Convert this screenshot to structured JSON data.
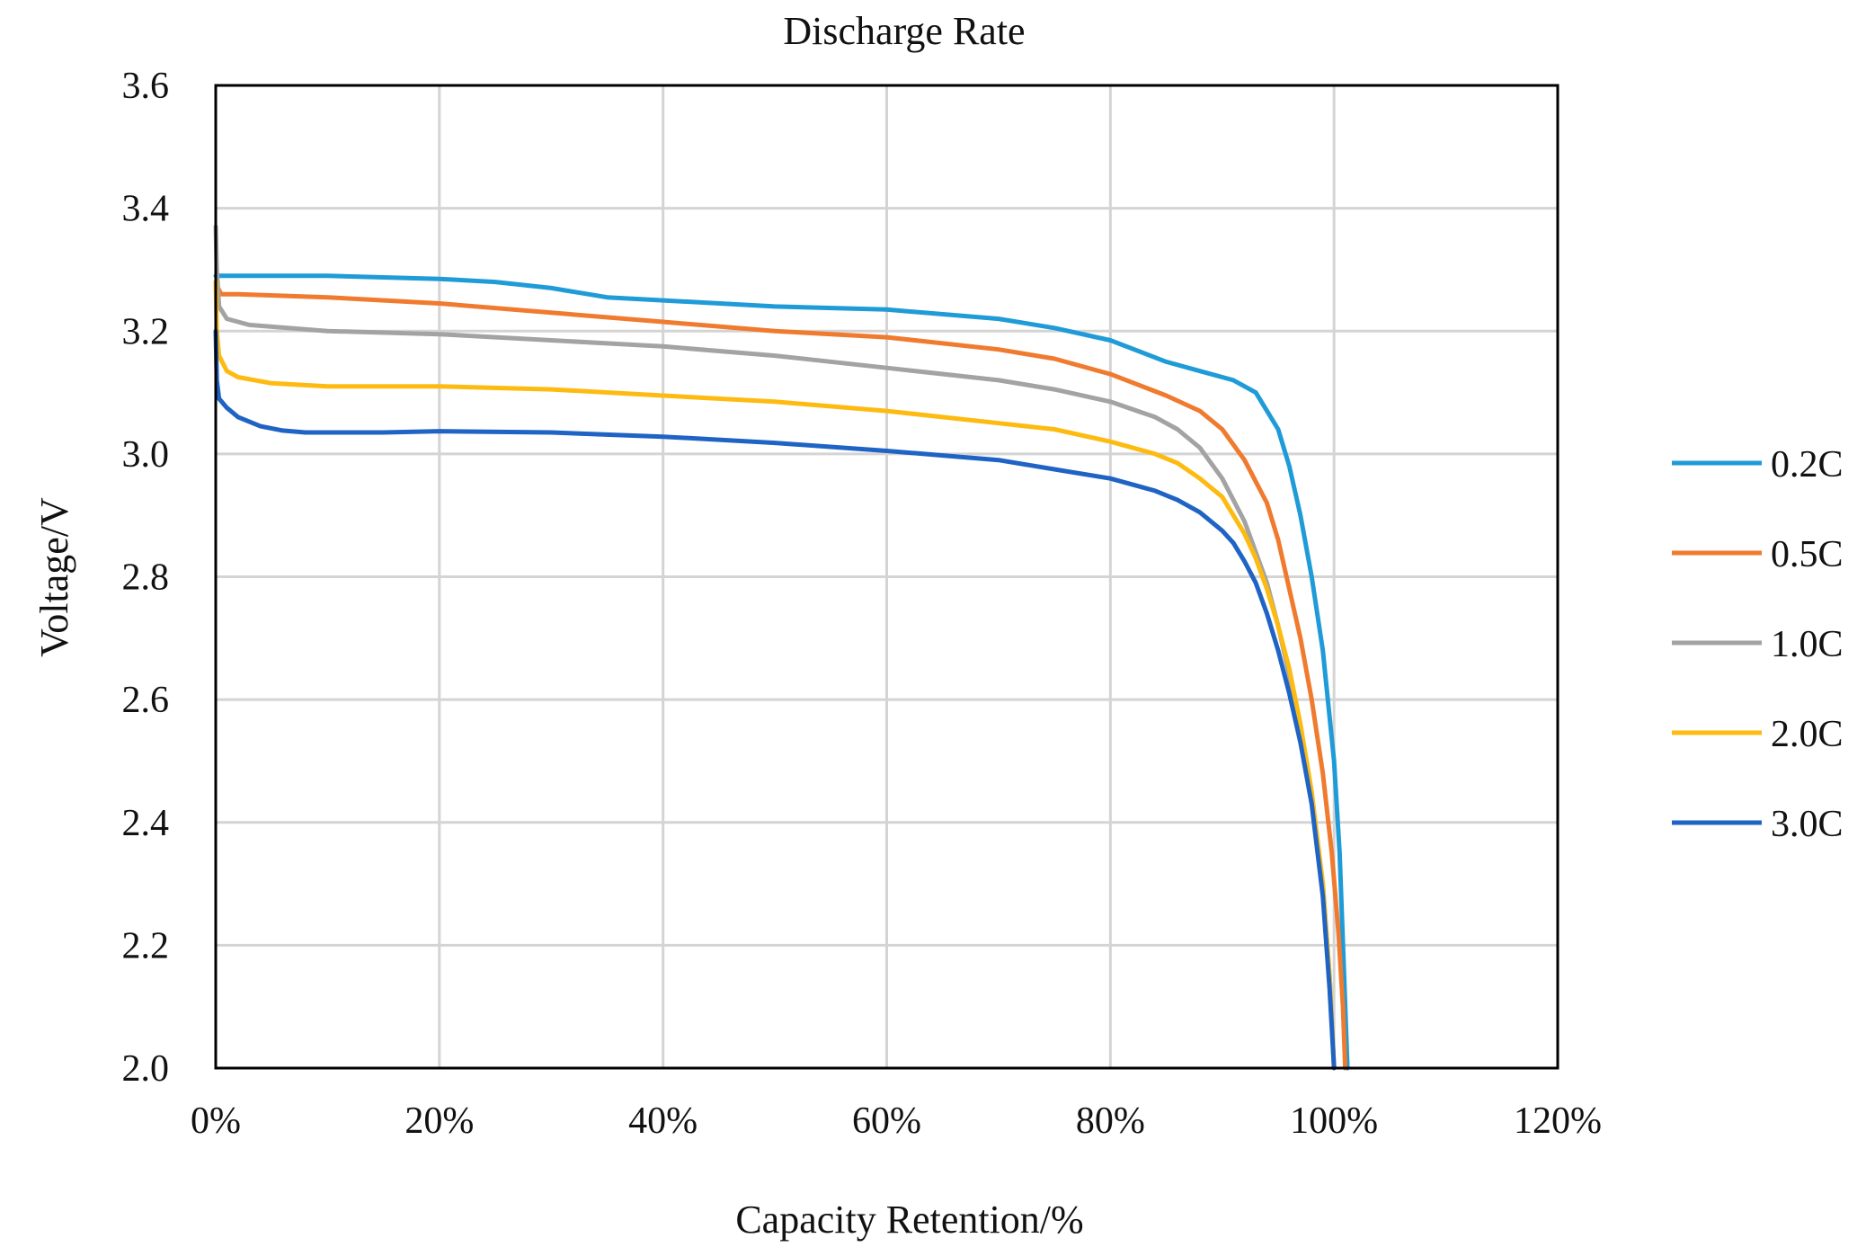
{
  "chart_data": {
    "type": "line",
    "title": "Discharge Rate",
    "xlabel": "Capacity Retention/%",
    "ylabel": "Voltage/V",
    "xlim": [
      0,
      120
    ],
    "ylim": [
      2.0,
      3.6
    ],
    "x_tick_labels": [
      "0%",
      "20%",
      "40%",
      "60%",
      "80%",
      "100%",
      "120%"
    ],
    "y_tick_labels": [
      "2.0",
      "2.2",
      "2.4",
      "2.6",
      "2.8",
      "3.0",
      "3.2",
      "3.4",
      "3.6"
    ],
    "grid": true,
    "legend_position": "right",
    "series": [
      {
        "name": "0.2C",
        "color": "#1f9bd7",
        "x": [
          0,
          0.3,
          1,
          5,
          10,
          20,
          25,
          30,
          35,
          40,
          50,
          60,
          70,
          75,
          80,
          85,
          88,
          91,
          93,
          95,
          96,
          97,
          98,
          99,
          100,
          100.5,
          100.9,
          101.2
        ],
        "y": [
          3.29,
          3.29,
          3.29,
          3.29,
          3.29,
          3.285,
          3.28,
          3.27,
          3.255,
          3.25,
          3.24,
          3.235,
          3.22,
          3.205,
          3.185,
          3.15,
          3.135,
          3.12,
          3.1,
          3.04,
          2.98,
          2.9,
          2.8,
          2.68,
          2.5,
          2.35,
          2.15,
          2.0
        ]
      },
      {
        "name": "0.5C",
        "color": "#f07a2e",
        "x": [
          0,
          0.2,
          0.5,
          2,
          10,
          20,
          30,
          40,
          50,
          60,
          70,
          75,
          80,
          85,
          88,
          90,
          92,
          94,
          95,
          96,
          97,
          98,
          99,
          99.8,
          100.4,
          100.8,
          101
        ],
        "y": [
          3.28,
          3.27,
          3.26,
          3.26,
          3.255,
          3.245,
          3.23,
          3.215,
          3.2,
          3.19,
          3.17,
          3.155,
          3.13,
          3.095,
          3.07,
          3.04,
          2.99,
          2.92,
          2.86,
          2.78,
          2.7,
          2.6,
          2.48,
          2.35,
          2.22,
          2.1,
          2.0
        ]
      },
      {
        "name": "1.0C",
        "color": "#a3a3a3",
        "x": [
          0,
          0.1,
          0.3,
          1,
          3,
          10,
          20,
          30,
          40,
          50,
          60,
          70,
          75,
          80,
          84,
          86,
          88,
          90,
          92,
          93,
          94,
          95,
          96,
          97,
          98,
          99,
          99.6,
          100
        ],
        "y": [
          3.37,
          3.3,
          3.24,
          3.22,
          3.21,
          3.2,
          3.195,
          3.185,
          3.175,
          3.16,
          3.14,
          3.12,
          3.105,
          3.085,
          3.06,
          3.04,
          3.01,
          2.96,
          2.89,
          2.84,
          2.79,
          2.72,
          2.64,
          2.55,
          2.44,
          2.3,
          2.15,
          2.0
        ]
      },
      {
        "name": "2.0C",
        "color": "#fdbb12",
        "x": [
          0,
          0.1,
          0.3,
          1,
          2,
          5,
          10,
          20,
          30,
          40,
          50,
          60,
          70,
          75,
          80,
          84,
          86,
          88,
          90,
          91,
          92,
          93,
          94,
          95,
          96,
          97,
          98,
          99,
          99.6,
          100
        ],
        "y": [
          3.28,
          3.2,
          3.16,
          3.135,
          3.125,
          3.115,
          3.11,
          3.11,
          3.105,
          3.095,
          3.085,
          3.07,
          3.05,
          3.04,
          3.02,
          3.0,
          2.985,
          2.96,
          2.93,
          2.9,
          2.87,
          2.83,
          2.78,
          2.72,
          2.65,
          2.56,
          2.45,
          2.3,
          2.15,
          2.0
        ]
      },
      {
        "name": "3.0C",
        "color": "#1f63c4",
        "x": [
          0,
          0.1,
          0.3,
          1,
          2,
          4,
          6,
          8,
          10,
          15,
          20,
          30,
          40,
          50,
          60,
          70,
          75,
          80,
          84,
          86,
          88,
          90,
          91,
          92,
          93,
          94,
          95,
          96,
          97,
          98,
          99,
          99.6,
          100
        ],
        "y": [
          3.2,
          3.12,
          3.09,
          3.075,
          3.06,
          3.045,
          3.038,
          3.035,
          3.035,
          3.035,
          3.037,
          3.035,
          3.028,
          3.018,
          3.005,
          2.99,
          2.975,
          2.96,
          2.94,
          2.925,
          2.905,
          2.875,
          2.855,
          2.825,
          2.79,
          2.74,
          2.68,
          2.61,
          2.53,
          2.43,
          2.28,
          2.13,
          2.0
        ]
      }
    ]
  }
}
